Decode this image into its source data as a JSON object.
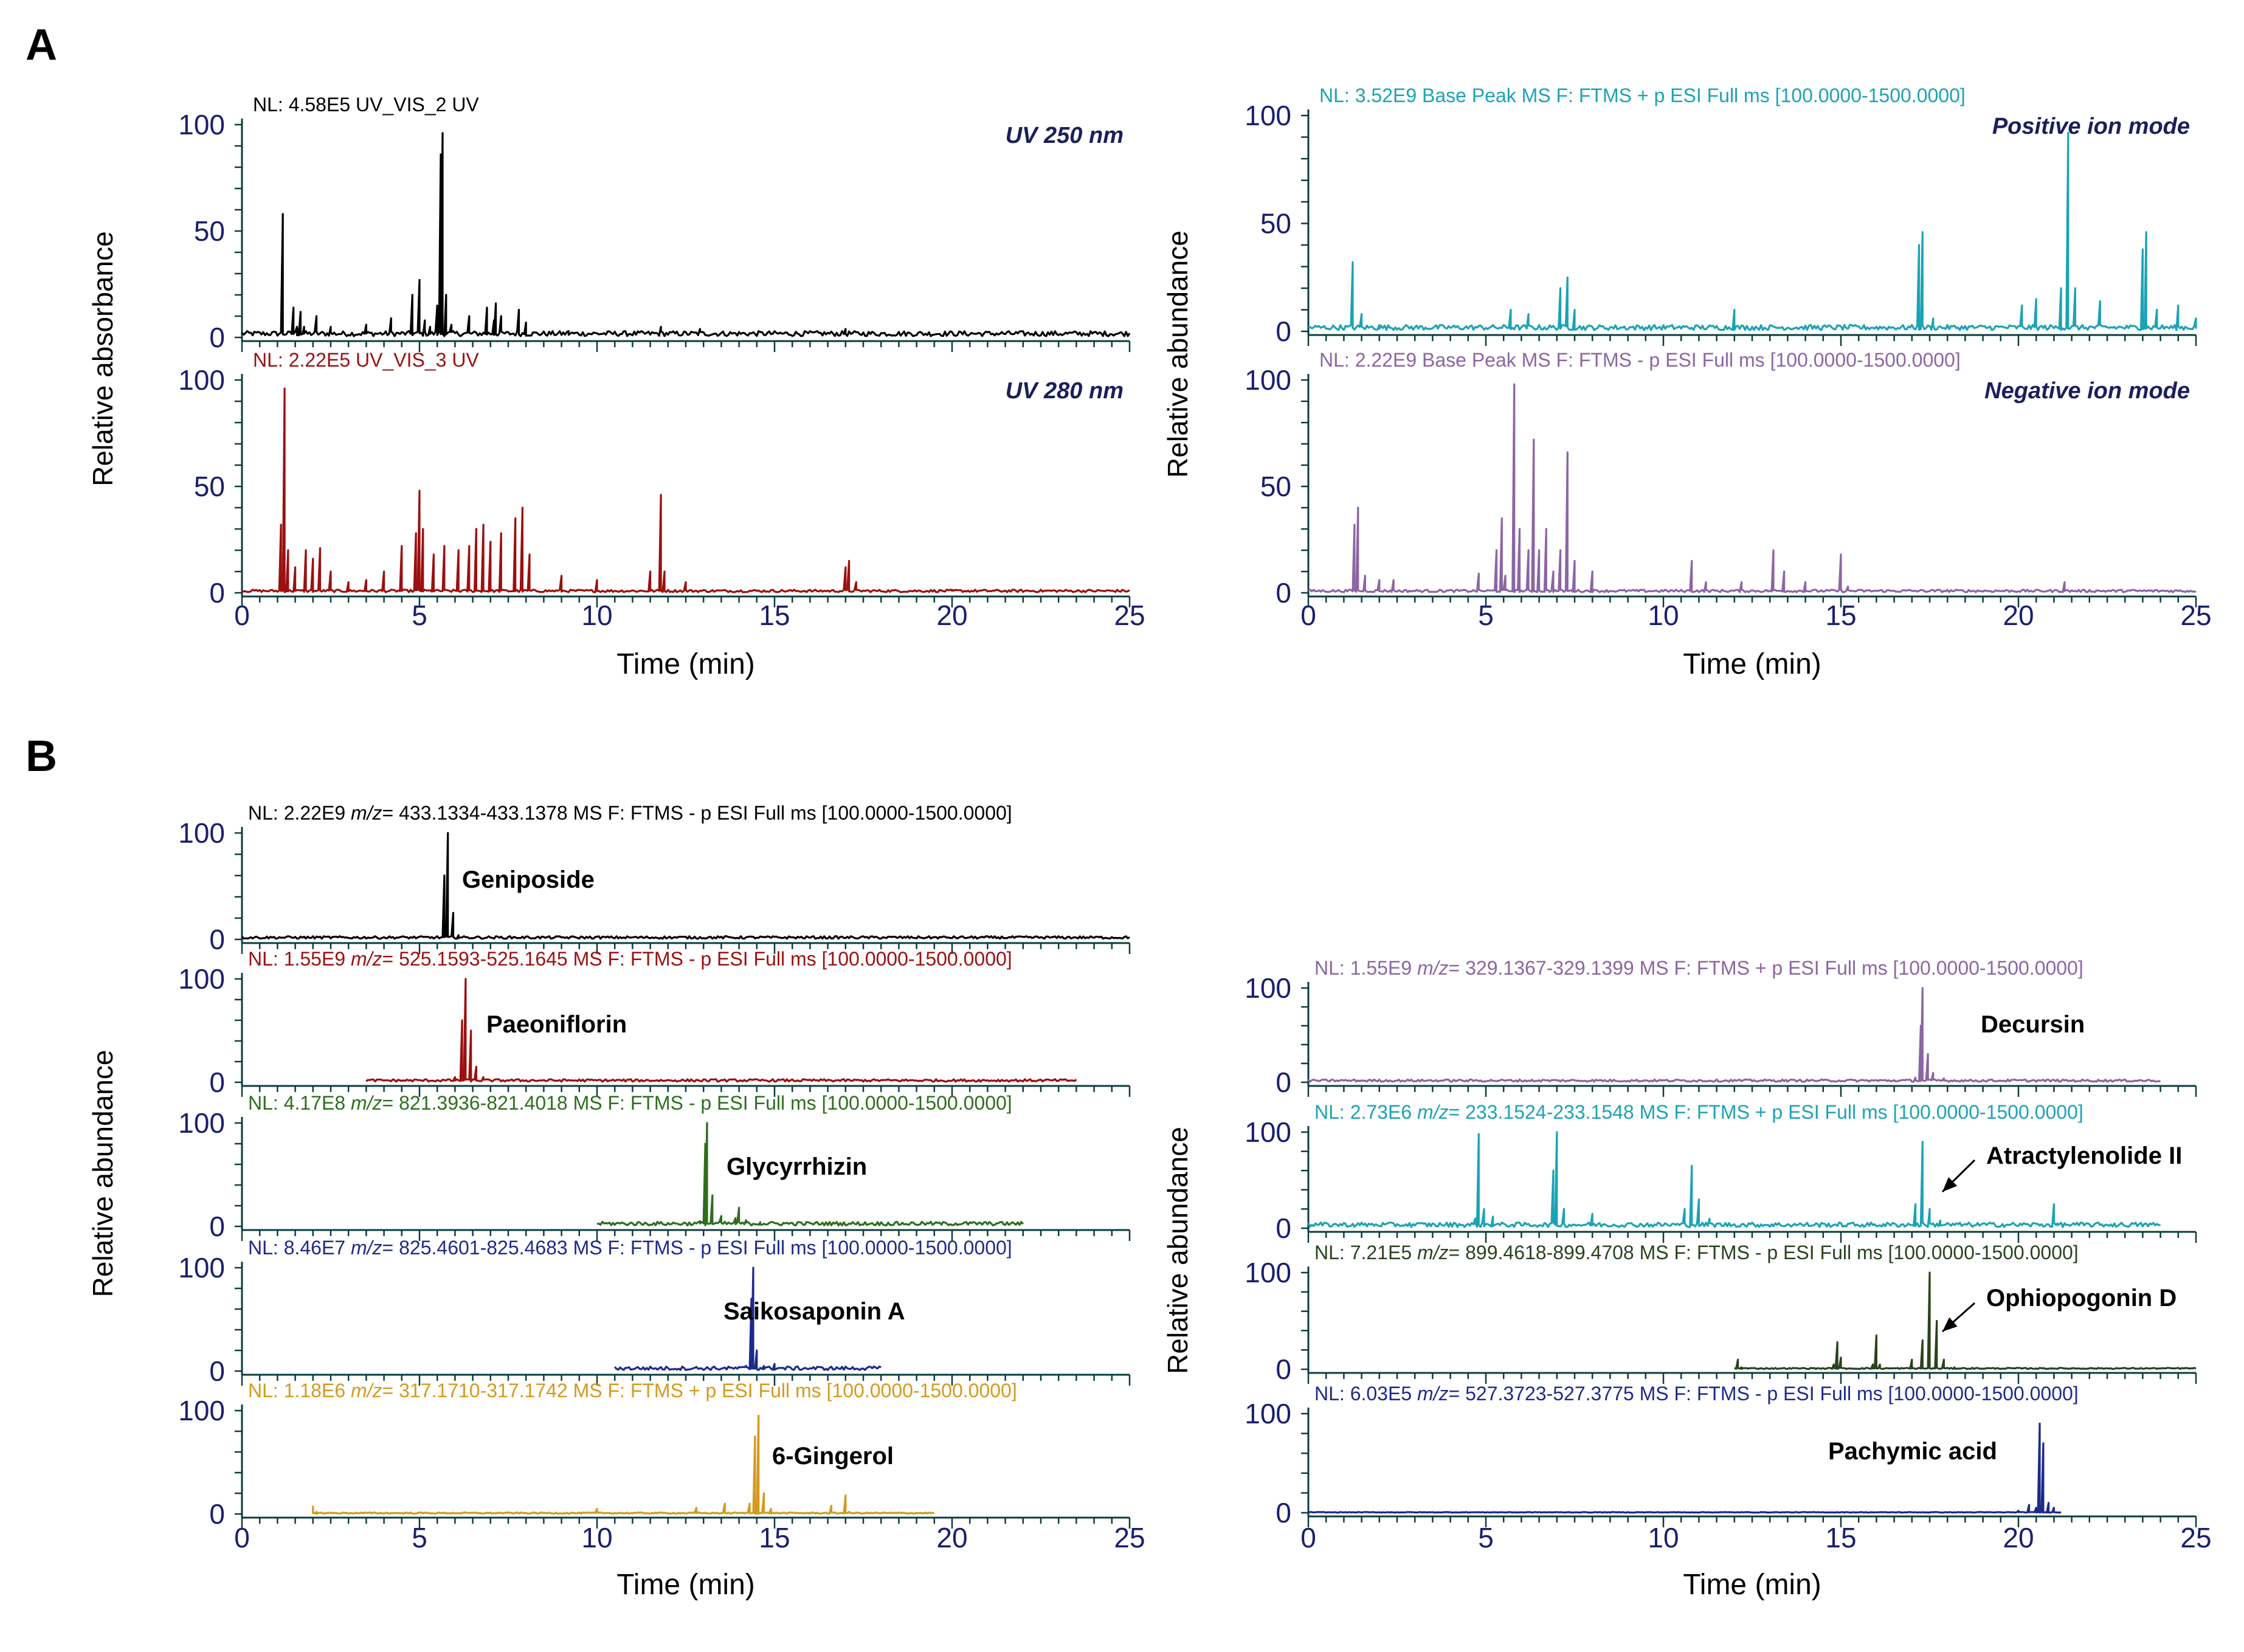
{
  "figure": {
    "panel_a_label": "A",
    "panel_b_label": "B"
  },
  "chart_data": [
    {
      "id": "A-left",
      "type": "line",
      "panel": "A",
      "xlabel": "Time (min)",
      "ylabel": "Relative absorbance",
      "xlim": [
        0,
        25
      ],
      "x_ticks": [
        "0",
        "5",
        "10",
        "15",
        "20",
        "25"
      ],
      "y_ticks": [
        "0",
        "50",
        "100"
      ],
      "series": [
        {
          "name": "NL: 4.58E5  UV_VIS_2 UV",
          "title": "UV 250 nm",
          "title_color": "#1a1f5c",
          "color": "#000000",
          "ylim": [
            0,
            100
          ],
          "end": 25,
          "baseline": 2,
          "points": [
            [
              1.15,
              58
            ],
            [
              1.45,
              14
            ],
            [
              1.55,
              5
            ],
            [
              1.6,
              4
            ],
            [
              1.65,
              12
            ],
            [
              1.75,
              5
            ],
            [
              2.1,
              10
            ],
            [
              2.5,
              5
            ],
            [
              3.5,
              6
            ],
            [
              4.2,
              9
            ],
            [
              4.8,
              20
            ],
            [
              5.0,
              27
            ],
            [
              5.15,
              8
            ],
            [
              5.3,
              5
            ],
            [
              5.5,
              15
            ],
            [
              5.6,
              86
            ],
            [
              5.65,
              96
            ],
            [
              5.75,
              20
            ],
            [
              5.9,
              6
            ],
            [
              6.4,
              10
            ],
            [
              6.9,
              14
            ],
            [
              7.1,
              8
            ],
            [
              7.15,
              16
            ],
            [
              7.3,
              10
            ],
            [
              7.8,
              13
            ],
            [
              8.0,
              7
            ],
            [
              9.2,
              3
            ],
            [
              11.8,
              5
            ],
            [
              12.9,
              4
            ],
            [
              17.0,
              4
            ]
          ]
        },
        {
          "name": "NL: 2.22E5  UV_VIS_3 UV",
          "title": "UV 280 nm",
          "title_color": "#1a1f5c",
          "color": "#9b1010",
          "ylim": [
            0,
            100
          ],
          "end": 25,
          "baseline": 1,
          "points": [
            [
              1.1,
              32
            ],
            [
              1.2,
              96
            ],
            [
              1.3,
              20
            ],
            [
              1.5,
              12
            ],
            [
              1.8,
              20
            ],
            [
              2.0,
              16
            ],
            [
              2.2,
              21
            ],
            [
              2.5,
              10
            ],
            [
              3.0,
              5
            ],
            [
              3.5,
              6
            ],
            [
              4.0,
              10
            ],
            [
              4.5,
              22
            ],
            [
              4.9,
              28
            ],
            [
              5.0,
              48
            ],
            [
              5.1,
              30
            ],
            [
              5.4,
              18
            ],
            [
              5.7,
              22
            ],
            [
              6.1,
              20
            ],
            [
              6.4,
              22
            ],
            [
              6.6,
              30
            ],
            [
              6.8,
              32
            ],
            [
              7.0,
              24
            ],
            [
              7.3,
              28
            ],
            [
              7.7,
              35
            ],
            [
              7.9,
              40
            ],
            [
              8.1,
              18
            ],
            [
              9.0,
              8
            ],
            [
              10,
              6
            ],
            [
              11.5,
              10
            ],
            [
              11.8,
              46
            ],
            [
              11.9,
              10
            ],
            [
              12.5,
              5
            ],
            [
              17.0,
              12
            ],
            [
              17.1,
              15
            ],
            [
              17.3,
              5
            ],
            [
              20,
              1
            ]
          ]
        }
      ]
    },
    {
      "id": "A-right",
      "type": "line",
      "panel": "A",
      "xlabel": "Time (min)",
      "ylabel": "Relative abundance",
      "xlim": [
        0,
        25
      ],
      "x_ticks": [
        "0",
        "5",
        "10",
        "15",
        "20",
        "25"
      ],
      "y_ticks": [
        "0",
        "50",
        "100"
      ],
      "series": [
        {
          "name": "NL: 3.52E9  Base Peak MS  F: FTMS + p   ESI Full ms   [100.0000-1500.0000]",
          "title": "Positive ion mode",
          "title_color": "#1a1f5c",
          "color": "#1ba3b5",
          "ylim": [
            0,
            100
          ],
          "end": 25,
          "baseline": 2,
          "points": [
            [
              1.25,
              32
            ],
            [
              1.5,
              8
            ],
            [
              2.0,
              3
            ],
            [
              5.7,
              10
            ],
            [
              6.2,
              8
            ],
            [
              7.1,
              20
            ],
            [
              7.3,
              25
            ],
            [
              7.5,
              10
            ],
            [
              12.0,
              10
            ],
            [
              17.2,
              40
            ],
            [
              17.3,
              46
            ],
            [
              17.6,
              6
            ],
            [
              20.1,
              12
            ],
            [
              20.5,
              15
            ],
            [
              21.2,
              20
            ],
            [
              21.4,
              92
            ],
            [
              21.6,
              20
            ],
            [
              22.3,
              14
            ],
            [
              23.5,
              38
            ],
            [
              23.6,
              46
            ],
            [
              23.9,
              10
            ],
            [
              24.5,
              12
            ],
            [
              25,
              6
            ]
          ]
        },
        {
          "name": "NL: 2.22E9  Base Peak MS  F: FTMS - p   ESI Full ms   [100.0000-1500.0000]",
          "title": "Negative ion mode",
          "title_color": "#1a1f5c",
          "color": "#8c65a3",
          "ylim": [
            0,
            100
          ],
          "end": 25,
          "baseline": 1,
          "points": [
            [
              1.3,
              32
            ],
            [
              1.4,
              40
            ],
            [
              1.6,
              8
            ],
            [
              2.0,
              6
            ],
            [
              2.4,
              6
            ],
            [
              4.8,
              9
            ],
            [
              5.3,
              20
            ],
            [
              5.45,
              35
            ],
            [
              5.55,
              8
            ],
            [
              5.8,
              98
            ],
            [
              5.95,
              30
            ],
            [
              6.2,
              20
            ],
            [
              6.35,
              72
            ],
            [
              6.5,
              20
            ],
            [
              6.7,
              30
            ],
            [
              6.9,
              10
            ],
            [
              7.1,
              20
            ],
            [
              7.3,
              66
            ],
            [
              7.5,
              15
            ],
            [
              8.0,
              10
            ],
            [
              10.8,
              15
            ],
            [
              11.2,
              5
            ],
            [
              12.2,
              5
            ],
            [
              13.1,
              20
            ],
            [
              13.4,
              10
            ],
            [
              14.0,
              5
            ],
            [
              15.0,
              18
            ],
            [
              15.2,
              3
            ],
            [
              21.3,
              5
            ]
          ]
        }
      ]
    },
    {
      "id": "B-left",
      "type": "line",
      "panel": "B",
      "xlabel": "Time (min)",
      "ylabel": "Relative abundance",
      "xlim": [
        0,
        25
      ],
      "x_ticks": [
        "0",
        "5",
        "10",
        "15",
        "20",
        "25"
      ],
      "y_ticks": [
        "0",
        "100"
      ],
      "series": [
        {
          "name_pre": "NL: 2.22E9 ",
          "name_post": "= 433.1334-433.1378 MS  F: FTMS - p ESI Full ms  [100.0000-1500.0000]",
          "compound": "Geniposide",
          "color": "#000000",
          "ylim": [
            0,
            100
          ],
          "start": 0,
          "end": 25,
          "baseline": 2,
          "points": [
            [
              5.5,
              3
            ],
            [
              5.7,
              60
            ],
            [
              5.8,
              100
            ],
            [
              5.95,
              25
            ],
            [
              6.1,
              4
            ]
          ]
        },
        {
          "name_pre": "NL: 1.55E9 ",
          "name_post": "= 525.1593-525.1645 MS  F: FTMS - p ESI Full ms  [100.0000-1500.0000]",
          "compound": "Paeoniflorin",
          "color": "#9b1010",
          "ylim": [
            0,
            100
          ],
          "start": 3.5,
          "end": 23.5,
          "baseline": 2,
          "points": [
            [
              6.0,
              5
            ],
            [
              6.2,
              60
            ],
            [
              6.3,
              100
            ],
            [
              6.45,
              50
            ],
            [
              6.6,
              15
            ],
            [
              6.8,
              5
            ],
            [
              7.5,
              2
            ]
          ]
        },
        {
          "name_pre": "NL: 4.17E8 ",
          "name_post": "= 821.3936-821.4018 MS  F: FTMS - p ESI Full ms  [100.0000-1500.0000]",
          "compound": "Glycyrrhizin",
          "color": "#2d6e1e",
          "ylim": [
            0,
            100
          ],
          "start": 10,
          "end": 22,
          "baseline": 3,
          "points": [
            [
              12.9,
              5
            ],
            [
              13.05,
              80
            ],
            [
              13.1,
              100
            ],
            [
              13.25,
              30
            ],
            [
              13.5,
              10
            ],
            [
              13.9,
              8
            ],
            [
              14.0,
              18
            ],
            [
              14.2,
              6
            ],
            [
              14.6,
              4
            ]
          ]
        },
        {
          "name_pre": "NL: 8.46E7 ",
          "name_post": "= 825.4601-825.4683 MS  F: FTMS - p ESI Full ms  [100.0000-1500.0000]",
          "compound": "Saikosaponin A",
          "color": "#1d2a8c",
          "ylim": [
            0,
            100
          ],
          "start": 10.5,
          "end": 18,
          "baseline": 3,
          "points": [
            [
              14.2,
              5
            ],
            [
              14.35,
              70
            ],
            [
              14.4,
              100
            ],
            [
              14.5,
              20
            ],
            [
              14.7,
              5
            ],
            [
              15.0,
              7
            ]
          ]
        },
        {
          "name_pre": "NL: 1.18E6 ",
          "name_post": "= 317.1710-317.1742 MS  F: FTMS + p ESI Full ms [100.0000-1500.0000]",
          "compound": "6-Gingerol",
          "color": "#d39a1e",
          "ylim": [
            0,
            100
          ],
          "start": 2,
          "end": 19.5,
          "baseline": 1,
          "points": [
            [
              2.0,
              8
            ],
            [
              2.1,
              2
            ],
            [
              10.0,
              5
            ],
            [
              12.8,
              6
            ],
            [
              13.6,
              10
            ],
            [
              14.3,
              10
            ],
            [
              14.45,
              75
            ],
            [
              14.55,
              95
            ],
            [
              14.7,
              20
            ],
            [
              14.9,
              5
            ],
            [
              16.6,
              8
            ],
            [
              17.0,
              18
            ],
            [
              17.1,
              2
            ]
          ]
        }
      ]
    },
    {
      "id": "B-right",
      "type": "line",
      "panel": "B",
      "xlabel": "Time (min)",
      "ylabel": "Relative abundance",
      "xlim": [
        0,
        25
      ],
      "x_ticks": [
        "0",
        "5",
        "10",
        "15",
        "20",
        "25"
      ],
      "y_ticks": [
        "0",
        "100"
      ],
      "series": [
        {
          "name_pre": "NL: 1.55E9 ",
          "name_post": "= 329.1367-329.1399 MS  F: FTMS + p ESI Full ms  [100.0000-1500.0000]",
          "compound": "Decursin",
          "color": "#8c65a3",
          "ylim": [
            0,
            100
          ],
          "start": 0,
          "end": 24,
          "baseline": 2,
          "points": [
            [
              17.1,
              5
            ],
            [
              17.25,
              60
            ],
            [
              17.3,
              100
            ],
            [
              17.45,
              30
            ],
            [
              17.6,
              10
            ],
            [
              17.9,
              4
            ]
          ]
        },
        {
          "name_pre": "NL: 2.73E6 ",
          "name_post": "= 233.1524-233.1548 MS  F: FTMS + p ESI Full ms  [100.0000-1500.0000]",
          "compound": "Atractylenolide II",
          "color": "#1ba3b5",
          "ylim": [
            0,
            100
          ],
          "start": 0,
          "end": 24,
          "baseline": 4,
          "points": [
            [
              4.7,
              10
            ],
            [
              4.8,
              98
            ],
            [
              4.95,
              20
            ],
            [
              5.2,
              12
            ],
            [
              6.9,
              60
            ],
            [
              7.0,
              100
            ],
            [
              7.2,
              20
            ],
            [
              8.0,
              15
            ],
            [
              10.6,
              20
            ],
            [
              10.8,
              65
            ],
            [
              11.0,
              30
            ],
            [
              11.3,
              10
            ],
            [
              17.1,
              25
            ],
            [
              17.3,
              90
            ],
            [
              17.5,
              20
            ],
            [
              17.8,
              8
            ],
            [
              21.0,
              25
            ],
            [
              21.1,
              5
            ]
          ]
        },
        {
          "name_pre": "NL: 7.21E5 ",
          "name_post": "= 899.4618-899.4708 MS  F: FTMS - p ESI Full ms  [100.0000-1500.0000]",
          "compound": "Ophiopogonin D",
          "color": "#29431e",
          "ylim": [
            0,
            100
          ],
          "start": 12,
          "end": 25,
          "baseline": 1,
          "points": [
            [
              12.1,
              10
            ],
            [
              12.2,
              2
            ],
            [
              14.8,
              5
            ],
            [
              14.9,
              28
            ],
            [
              15.0,
              12
            ],
            [
              15.9,
              5
            ],
            [
              16.0,
              35
            ],
            [
              16.1,
              5
            ],
            [
              17.0,
              10
            ],
            [
              17.3,
              30
            ],
            [
              17.5,
              100
            ],
            [
              17.7,
              50
            ],
            [
              17.9,
              10
            ],
            [
              18.2,
              2
            ]
          ]
        },
        {
          "name_pre": "NL: 6.03E5 ",
          "name_post": "= 527.3723-527.3775 MS  F: FTMS - p ESI Full ms  [100.0000-1500.0000]",
          "compound": "Pachymic acid",
          "color": "#1d2a8c",
          "ylim": [
            0,
            100
          ],
          "start": 0,
          "end": 21.2,
          "baseline": 0.5,
          "points": [
            [
              20.0,
              2
            ],
            [
              20.3,
              8
            ],
            [
              20.5,
              5
            ],
            [
              20.6,
              90
            ],
            [
              20.7,
              70
            ],
            [
              20.85,
              10
            ],
            [
              21.0,
              5
            ]
          ]
        }
      ]
    }
  ]
}
